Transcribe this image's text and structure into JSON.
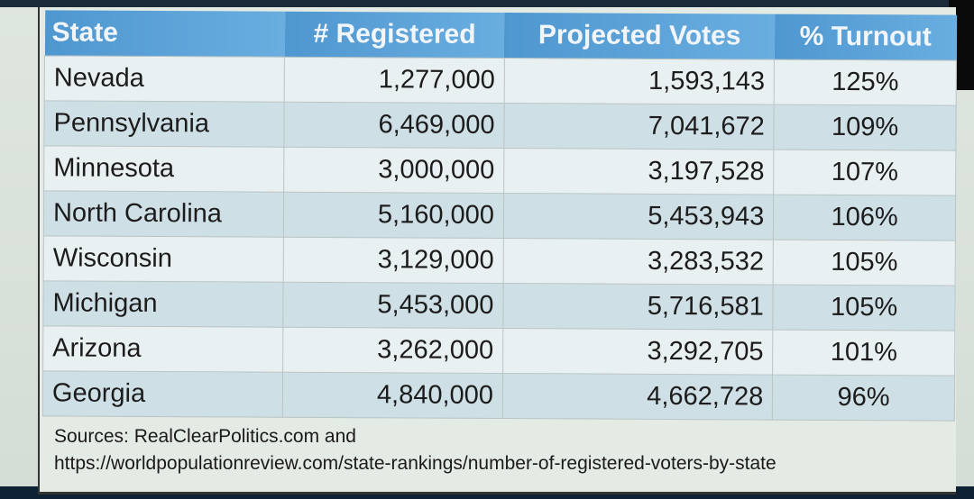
{
  "table": {
    "headers": [
      "State",
      "# Registered",
      "Projected Votes",
      "% Turnout"
    ],
    "rows": [
      [
        "Nevada",
        "1,277,000",
        "1,593,143",
        "125%"
      ],
      [
        "Pennsylvania",
        "6,469,000",
        "7,041,672",
        "109%"
      ],
      [
        "Minnesota",
        "3,000,000",
        "3,197,528",
        "107%"
      ],
      [
        "North Carolina",
        "5,160,000",
        "5,453,943",
        "106%"
      ],
      [
        "Wisconsin",
        "3,129,000",
        "3,283,532",
        "105%"
      ],
      [
        "Michigan",
        "5,453,000",
        "5,716,581",
        "105%"
      ],
      [
        "Arizona",
        "3,262,000",
        "3,292,705",
        "101%"
      ],
      [
        "Georgia",
        "4,840,000",
        "4,662,728",
        "96%"
      ]
    ]
  },
  "sources": {
    "line1": "Sources: RealClearPolitics.com and",
    "line2": "https://worldpopulationreview.com/state-rankings/number-of-registered-voters-by-state"
  },
  "colors": {
    "header": "#5ba3d9",
    "row_light": "#e9f0f1",
    "row_dark": "#cfdfe6"
  }
}
